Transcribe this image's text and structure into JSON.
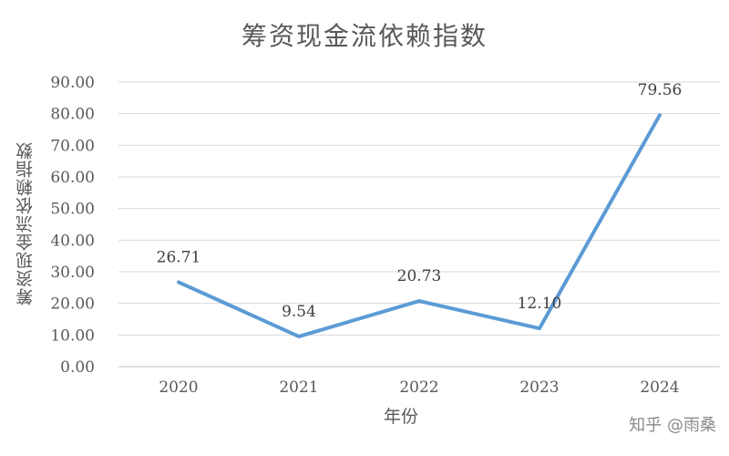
{
  "watermark": "知乎 @雨桑",
  "colors": {
    "line": "#5B9BD5",
    "grid": "#D9D9D9",
    "text": "#595959"
  },
  "chart_data": {
    "type": "line",
    "title": "筹资现金流依赖指数",
    "xlabel": "年份",
    "ylabel": "筹资现金流依赖指数",
    "categories": [
      "2020",
      "2021",
      "2022",
      "2023",
      "2024"
    ],
    "series": [
      {
        "values": [
          26.71,
          9.54,
          20.73,
          12.1,
          79.56
        ]
      }
    ],
    "data_labels": [
      "26.71",
      "9.54",
      "20.73",
      "12.10",
      "79.56"
    ],
    "yticks": [
      "0.00",
      "10.00",
      "20.00",
      "30.00",
      "40.00",
      "50.00",
      "60.00",
      "70.00",
      "80.00",
      "90.00"
    ],
    "ylim": [
      0,
      90
    ],
    "grid": true,
    "legend": "none"
  }
}
